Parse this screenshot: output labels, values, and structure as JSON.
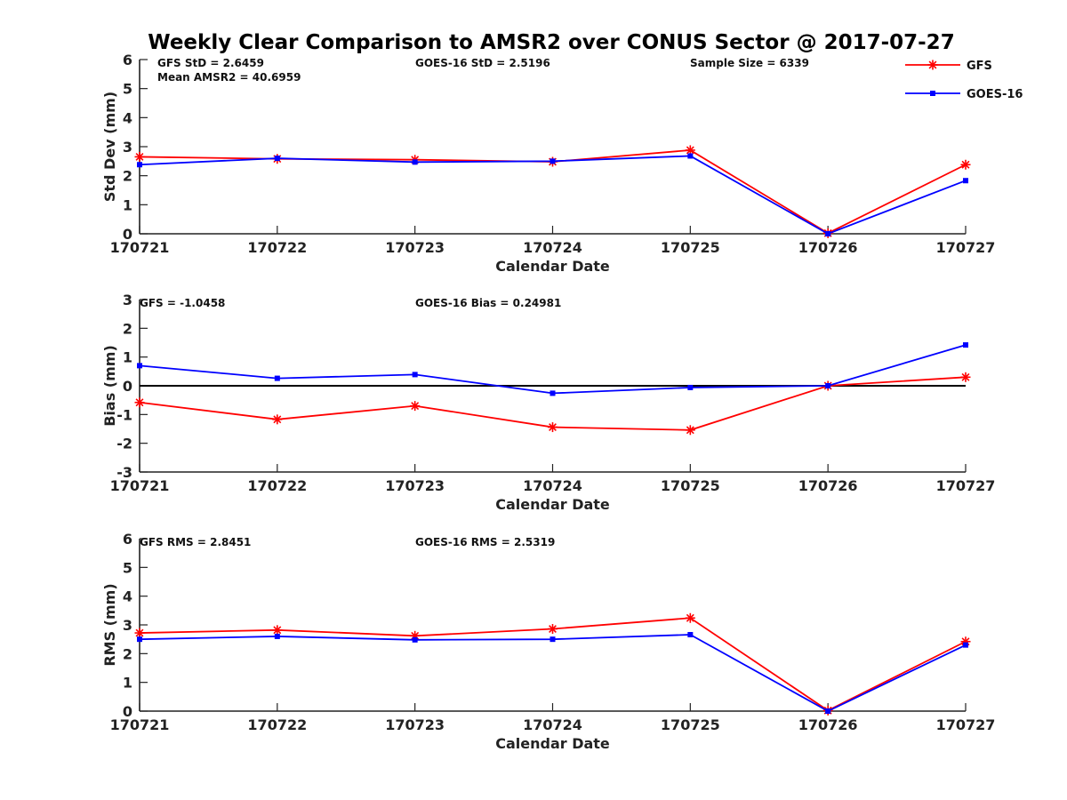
{
  "title": "Weekly Clear Comparison to AMSR2 over CONUS Sector @ 2017-07-27",
  "legend": {
    "position": "top-right",
    "entries": [
      {
        "label": "GFS",
        "color": "#ff0000",
        "marker": "star"
      },
      {
        "label": "GOES-16",
        "color": "#0000ff",
        "marker": "square"
      }
    ]
  },
  "chart_data": [
    {
      "type": "line",
      "xlabel": "Calendar Date",
      "ylabel": "Std Dev (mm)",
      "ylim": [
        0,
        6
      ],
      "yticks": [
        "0",
        "1",
        "2",
        "3",
        "4",
        "5",
        "6"
      ],
      "categories": [
        "170721",
        "170722",
        "170723",
        "170724",
        "170725",
        "170726",
        "170727"
      ],
      "annotations": [
        "GFS StD = 2.6459",
        "Mean AMSR2 = 40.6959",
        "GOES-16 StD = 2.5196",
        "Sample Size = 6339"
      ],
      "zero_line": false,
      "series": [
        {
          "name": "GFS",
          "color": "#ff0000",
          "marker": "star",
          "values": [
            2.65,
            2.58,
            2.55,
            2.48,
            2.88,
            0.02,
            2.38
          ]
        },
        {
          "name": "GOES-16",
          "color": "#0000ff",
          "marker": "square",
          "values": [
            2.38,
            2.6,
            2.47,
            2.5,
            2.68,
            0.0,
            1.83
          ]
        }
      ]
    },
    {
      "type": "line",
      "xlabel": "Calendar Date",
      "ylabel": "Bias (mm)",
      "ylim": [
        -3,
        3
      ],
      "yticks": [
        "-3",
        "-2",
        "-1",
        "0",
        "1",
        "2",
        "3"
      ],
      "categories": [
        "170721",
        "170722",
        "170723",
        "170724",
        "170725",
        "170726",
        "170727"
      ],
      "annotations": [
        "GFS = -1.0458",
        "GOES-16 Bias  = 0.24981"
      ],
      "zero_line": true,
      "series": [
        {
          "name": "GFS",
          "color": "#ff0000",
          "marker": "star",
          "values": [
            -0.58,
            -1.17,
            -0.7,
            -1.44,
            -1.54,
            0.0,
            0.3
          ]
        },
        {
          "name": "GOES-16",
          "color": "#0000ff",
          "marker": "square",
          "values": [
            0.7,
            0.26,
            0.39,
            -0.26,
            -0.06,
            0.0,
            1.42
          ]
        }
      ]
    },
    {
      "type": "line",
      "xlabel": "Calendar Date",
      "ylabel": "RMS (mm)",
      "ylim": [
        0,
        6
      ],
      "yticks": [
        "0",
        "1",
        "2",
        "3",
        "4",
        "5",
        "6"
      ],
      "categories": [
        "170721",
        "170722",
        "170723",
        "170724",
        "170725",
        "170726",
        "170727"
      ],
      "annotations": [
        "GFS RMS = 2.8451",
        "GOES-16 RMS = 2.5319"
      ],
      "zero_line": false,
      "series": [
        {
          "name": "GFS",
          "color": "#ff0000",
          "marker": "star",
          "values": [
            2.72,
            2.82,
            2.62,
            2.86,
            3.24,
            0.02,
            2.42
          ]
        },
        {
          "name": "GOES-16",
          "color": "#0000ff",
          "marker": "square",
          "values": [
            2.5,
            2.6,
            2.48,
            2.5,
            2.66,
            0.0,
            2.3
          ]
        }
      ]
    }
  ]
}
